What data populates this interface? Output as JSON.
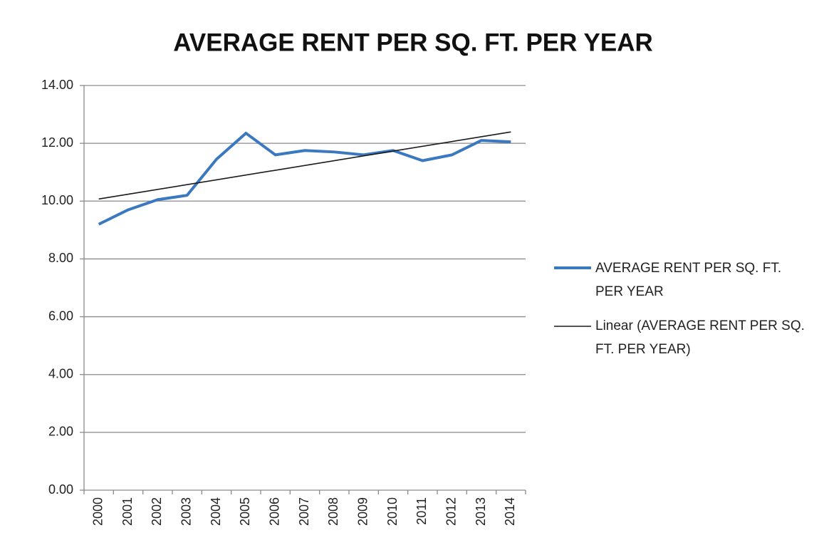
{
  "chart_data": {
    "type": "line",
    "title": "AVERAGE RENT PER SQ. FT. PER YEAR",
    "categories": [
      "2000",
      "2001",
      "2002",
      "2003",
      "2004",
      "2005",
      "2006",
      "2007",
      "2008",
      "2009",
      "2010",
      "2011",
      "2012",
      "2013",
      "2014"
    ],
    "series": [
      {
        "name": "AVERAGE RENT PER SQ. FT. PER YEAR",
        "color": "#3a78c0",
        "values": [
          9.2,
          9.7,
          10.05,
          10.2,
          11.45,
          12.35,
          11.6,
          11.75,
          11.7,
          11.6,
          11.75,
          11.4,
          11.6,
          12.1,
          12.05
        ]
      }
    ],
    "trendline": {
      "name": "Linear (AVERAGE RENT PER SQ. FT. PER YEAR)",
      "type": "linear",
      "color": "#1a1a1a"
    },
    "ylim": [
      0,
      14
    ],
    "yticks": [
      {
        "value": 0,
        "label": "0.00"
      },
      {
        "value": 2,
        "label": "2.00"
      },
      {
        "value": 4,
        "label": "4.00"
      },
      {
        "value": 6,
        "label": "6.00"
      },
      {
        "value": 8,
        "label": "8.00"
      },
      {
        "value": 10,
        "label": "10.00"
      },
      {
        "value": 12,
        "label": "12.00"
      },
      {
        "value": 14,
        "label": "14.00"
      }
    ],
    "grid": true,
    "legend": "right"
  }
}
